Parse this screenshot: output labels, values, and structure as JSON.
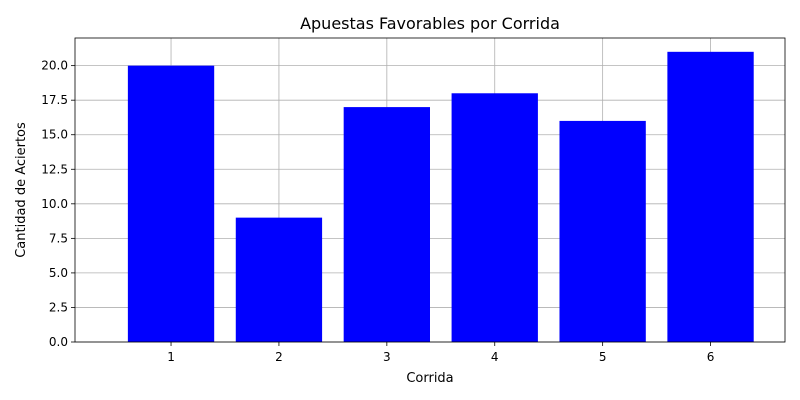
{
  "chart_data": {
    "type": "bar",
    "title": "Apuestas Favorables por Corrida",
    "xlabel": "Corrida",
    "ylabel": "Cantidad de Aciertos",
    "categories": [
      "1",
      "2",
      "3",
      "4",
      "5",
      "6"
    ],
    "values": [
      20,
      9,
      17,
      18,
      16,
      21
    ],
    "ylim": [
      0,
      22
    ],
    "yticks": [
      0,
      2.5,
      5,
      7.5,
      10,
      12.5,
      15,
      17.5,
      20
    ],
    "ytick_labels": [
      "0.0",
      "2.5",
      "5.0",
      "7.5",
      "10.0",
      "12.5",
      "15.0",
      "17.5",
      "20.0"
    ],
    "grid": true,
    "legend": "none",
    "bar_color": "#0000ff",
    "grid_color": "#b0b0b0",
    "axis_color": "#000000"
  }
}
